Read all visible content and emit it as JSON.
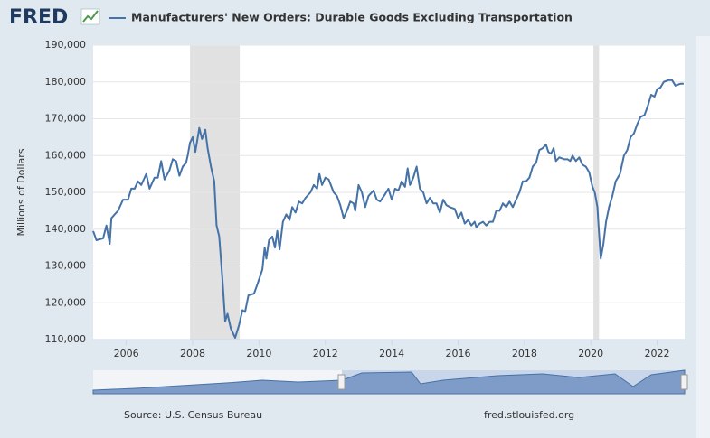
{
  "logo": "FRED",
  "source": "Source: U.S. Census Bureau",
  "site": "fred.stlouisfed.org",
  "chart_data": {
    "type": "line",
    "y_label": "Millions of Dollars",
    "grid": true,
    "legend": "top-left",
    "xlim": [
      2005,
      2022.83
    ],
    "xticks": [
      2006,
      2008,
      2010,
      2012,
      2014,
      2016,
      2018,
      2020,
      2022
    ],
    "ylim": [
      110000,
      190000
    ],
    "yticks": [
      {
        "value": 110000,
        "label": "110,000"
      },
      {
        "value": 120000,
        "label": "120,000"
      },
      {
        "value": 130000,
        "label": "130,000"
      },
      {
        "value": 140000,
        "label": "140,000"
      },
      {
        "value": 150000,
        "label": "150,000"
      },
      {
        "value": 160000,
        "label": "160,000"
      },
      {
        "value": 170000,
        "label": "170,000"
      },
      {
        "value": 180000,
        "label": "180,000"
      },
      {
        "value": 190000,
        "label": "190,000"
      }
    ],
    "recessions": [
      [
        2007.92,
        2009.42
      ],
      [
        2020.08,
        2020.25
      ]
    ],
    "recession_color": "#e1e1e1",
    "x": [
      2005.0,
      2005.1,
      2005.3,
      2005.4,
      2005.5,
      2005.55,
      2005.75,
      2005.9,
      2006.05,
      2006.15,
      2006.25,
      2006.35,
      2006.45,
      2006.6,
      2006.7,
      2006.85,
      2006.95,
      2007.05,
      2007.15,
      2007.3,
      2007.4,
      2007.5,
      2007.6,
      2007.7,
      2007.8,
      2007.85,
      2007.92,
      2008.0,
      2008.08,
      2008.2,
      2008.28,
      2008.38,
      2008.45,
      2008.55,
      2008.65,
      2008.72,
      2008.8,
      2008.9,
      2008.98,
      2009.05,
      2009.15,
      2009.28,
      2009.4,
      2009.5,
      2009.58,
      2009.68,
      2009.85,
      2009.95,
      2010.1,
      2010.17,
      2010.22,
      2010.3,
      2010.4,
      2010.48,
      2010.55,
      2010.62,
      2010.72,
      2010.82,
      2010.92,
      2011.0,
      2011.1,
      2011.2,
      2011.3,
      2011.4,
      2011.55,
      2011.65,
      2011.75,
      2011.82,
      2011.9,
      2012.0,
      2012.1,
      2012.25,
      2012.35,
      2012.45,
      2012.55,
      2012.65,
      2012.75,
      2012.85,
      2012.9,
      2013.0,
      2013.1,
      2013.2,
      2013.3,
      2013.45,
      2013.55,
      2013.65,
      2013.8,
      2013.9,
      2014.0,
      2014.1,
      2014.2,
      2014.3,
      2014.4,
      2014.48,
      2014.55,
      2014.65,
      2014.75,
      2014.85,
      2014.95,
      2015.05,
      2015.15,
      2015.25,
      2015.35,
      2015.45,
      2015.55,
      2015.65,
      2015.75,
      2015.9,
      2016.0,
      2016.1,
      2016.2,
      2016.3,
      2016.4,
      2016.5,
      2016.55,
      2016.65,
      2016.75,
      2016.85,
      2016.95,
      2017.05,
      2017.15,
      2017.25,
      2017.35,
      2017.45,
      2017.55,
      2017.65,
      2017.75,
      2017.85,
      2017.95,
      2018.05,
      2018.15,
      2018.25,
      2018.35,
      2018.45,
      2018.55,
      2018.65,
      2018.72,
      2018.8,
      2018.88,
      2018.95,
      2019.05,
      2019.2,
      2019.3,
      2019.38,
      2019.45,
      2019.55,
      2019.65,
      2019.75,
      2019.85,
      2019.95,
      2020.05,
      2020.12,
      2020.2,
      2020.24,
      2020.3,
      2020.38,
      2020.46,
      2020.55,
      2020.65,
      2020.75,
      2020.88,
      2021.0,
      2021.1,
      2021.2,
      2021.3,
      2021.4,
      2021.5,
      2021.62,
      2021.72,
      2021.82,
      2021.92,
      2022.0,
      2022.1,
      2022.2,
      2022.35,
      2022.45,
      2022.55,
      2022.7,
      2022.8
    ],
    "series": [
      {
        "name": "Manufacturers' New Orders: Durable Goods Excluding Transportation",
        "color": "#4572a7",
        "values": [
          139500,
          137000,
          137500,
          141000,
          136000,
          143000,
          145000,
          148000,
          148000,
          151000,
          151000,
          153000,
          152000,
          155000,
          151000,
          154000,
          154000,
          158500,
          153500,
          156000,
          159000,
          158500,
          154500,
          157000,
          158000,
          160000,
          163500,
          165000,
          161000,
          167500,
          164500,
          167000,
          162000,
          157000,
          153000,
          141000,
          138000,
          126000,
          115000,
          117000,
          113000,
          110500,
          114000,
          118000,
          117500,
          122000,
          122500,
          125000,
          129000,
          135000,
          132000,
          137000,
          138000,
          135000,
          139500,
          134500,
          142000,
          144000,
          142500,
          146000,
          144500,
          147500,
          147000,
          148500,
          150000,
          152000,
          151000,
          155000,
          152000,
          154000,
          153500,
          150000,
          149000,
          146500,
          143000,
          145000,
          147500,
          147000,
          145000,
          152000,
          150000,
          146000,
          149000,
          150500,
          148000,
          147500,
          149500,
          151000,
          148000,
          151000,
          150500,
          153000,
          151500,
          156500,
          152000,
          154000,
          157000,
          151000,
          150000,
          147000,
          148500,
          147000,
          147000,
          144500,
          148000,
          146500,
          146000,
          145500,
          143000,
          144500,
          141500,
          142500,
          141000,
          142000,
          140500,
          141500,
          142000,
          141000,
          142000,
          142000,
          145000,
          145000,
          147000,
          146000,
          147500,
          146000,
          148000,
          150000,
          153000,
          153000,
          154000,
          157000,
          158000,
          161500,
          162000,
          163000,
          161000,
          160500,
          162000,
          158500,
          159500,
          159000,
          159000,
          158500,
          160000,
          158500,
          159500,
          157500,
          157000,
          155500,
          151500,
          150000,
          146000,
          140000,
          132000,
          136000,
          142000,
          146000,
          149000,
          153000,
          155000,
          160000,
          161500,
          165000,
          166000,
          168500,
          170500,
          171000,
          173500,
          176500,
          176000,
          178000,
          178500,
          180000,
          180500,
          180500,
          179000,
          179500,
          179500
        ]
      }
    ]
  }
}
